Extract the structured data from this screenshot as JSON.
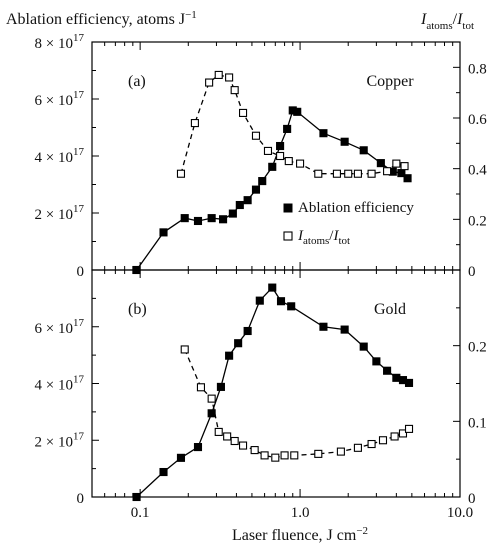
{
  "figure": {
    "ylabel_left": "Ablation efficiency, atoms J",
    "ylabel_left_exp": "−1",
    "ylabel_right_main": "I",
    "ylabel_right_sub1": "atoms",
    "ylabel_right_slash": "/",
    "ylabel_right_main2": "I",
    "ylabel_right_sub2": "tot",
    "xlabel": "Laser fluence, J cm",
    "xlabel_exp": "−2",
    "xticks": [
      "0.1",
      "1.0",
      "10.0"
    ]
  },
  "chart_data": [
    {
      "type": "line",
      "panel_label": "(a)",
      "material": "Copper",
      "x_scale": "log",
      "xlim": [
        0.05,
        10.0
      ],
      "ylim_left": [
        0,
        8e+17
      ],
      "ylim_right": [
        0,
        0.9
      ],
      "yticks_left": [
        {
          "value": 0,
          "mant": "0",
          "exp": ""
        },
        {
          "value": 2e+17,
          "mant": "2 × 10",
          "exp": "17"
        },
        {
          "value": 4e+17,
          "mant": "4 × 10",
          "exp": "17"
        },
        {
          "value": 6e+17,
          "mant": "6 × 10",
          "exp": "17"
        },
        {
          "value": 8e+17,
          "mant": "8 × 10",
          "exp": "17"
        }
      ],
      "yticks_right": [
        "0",
        "0.2",
        "0.4",
        "0.6",
        "0.8"
      ],
      "legend": {
        "efficiency": "Ablation efficiency",
        "ratio_main": "I",
        "ratio_sub1": "atoms",
        "ratio_slash": "/",
        "ratio_main2": "I",
        "ratio_sub2": "tot"
      },
      "series": [
        {
          "name": "Ablation efficiency",
          "axis": "left",
          "marker": "filled-square",
          "line": "solid",
          "x": [
            0.095,
            0.14,
            0.19,
            0.23,
            0.28,
            0.33,
            0.38,
            0.42,
            0.47,
            0.53,
            0.58,
            0.67,
            0.75,
            0.83,
            0.9,
            0.96,
            1.4,
            1.9,
            2.5,
            3.2,
            3.8,
            4.3,
            4.7
          ],
          "y": [
            0,
            1.32e+17,
            1.82e+17,
            1.72e+17,
            1.82e+17,
            1.78e+17,
            1.98e+17,
            2.28e+17,
            2.45e+17,
            2.82e+17,
            3.12e+17,
            3.62e+17,
            4.35e+17,
            4.95e+17,
            5.6e+17,
            5.55e+17,
            4.8e+17,
            4.5e+17,
            4.2e+17,
            3.75e+17,
            3.45e+17,
            3.4e+17,
            3.22e+17
          ]
        },
        {
          "name": "Iatoms/Itot",
          "axis": "right",
          "marker": "open-square",
          "line": "dashed",
          "x": [
            0.18,
            0.22,
            0.27,
            0.31,
            0.36,
            0.39,
            0.44,
            0.53,
            0.63,
            0.75,
            0.85,
            1.0,
            1.3,
            1.7,
            2.0,
            2.3,
            2.8,
            3.5,
            4.0,
            4.5
          ],
          "y": [
            0.38,
            0.58,
            0.74,
            0.77,
            0.76,
            0.71,
            0.62,
            0.53,
            0.47,
            0.45,
            0.43,
            0.42,
            0.38,
            0.38,
            0.38,
            0.38,
            0.38,
            0.39,
            0.42,
            0.41
          ]
        }
      ]
    },
    {
      "type": "line",
      "panel_label": "(b)",
      "material": "Gold",
      "x_scale": "log",
      "xlim": [
        0.05,
        10.0
      ],
      "ylim_left": [
        0,
        8e+17
      ],
      "ylim_right": [
        0,
        0.3
      ],
      "yticks_left": [
        {
          "value": 0,
          "mant": "0",
          "exp": ""
        },
        {
          "value": 2e+17,
          "mant": "2 × 10",
          "exp": "17"
        },
        {
          "value": 4e+17,
          "mant": "4 × 10",
          "exp": "17"
        },
        {
          "value": 6e+17,
          "mant": "6 × 10",
          "exp": "17"
        }
      ],
      "yticks_right": [
        "0",
        "0.1",
        "0.2"
      ],
      "series": [
        {
          "name": "Ablation efficiency",
          "axis": "left",
          "marker": "filled-square",
          "line": "solid",
          "x": [
            0.095,
            0.14,
            0.18,
            0.23,
            0.28,
            0.32,
            0.36,
            0.41,
            0.47,
            0.56,
            0.67,
            0.76,
            0.88,
            1.4,
            1.9,
            2.5,
            3.0,
            3.5,
            4.0,
            4.4,
            4.8
          ],
          "y": [
            0,
            8.8e+16,
            1.38e+17,
            1.76e+17,
            2.95e+17,
            3.88e+17,
            4.98e+17,
            5.42e+17,
            5.85e+17,
            6.92e+17,
            7.38e+17,
            6.9e+17,
            6.72e+17,
            6e+17,
            5.9e+17,
            5.3e+17,
            4.78e+17,
            4.45e+17,
            4.2e+17,
            4.12e+17,
            4.02e+17
          ]
        },
        {
          "name": "Iatoms/Itot",
          "axis": "right",
          "marker": "open-square",
          "line": "dashed",
          "x": [
            0.19,
            0.24,
            0.28,
            0.31,
            0.35,
            0.39,
            0.44,
            0.52,
            0.6,
            0.7,
            0.8,
            0.92,
            1.3,
            1.8,
            2.3,
            2.8,
            3.3,
            3.9,
            4.4,
            4.8
          ],
          "y": [
            0.195,
            0.145,
            0.13,
            0.086,
            0.08,
            0.074,
            0.068,
            0.062,
            0.055,
            0.052,
            0.055,
            0.055,
            0.057,
            0.06,
            0.065,
            0.07,
            0.075,
            0.08,
            0.084,
            0.09
          ]
        }
      ]
    }
  ]
}
